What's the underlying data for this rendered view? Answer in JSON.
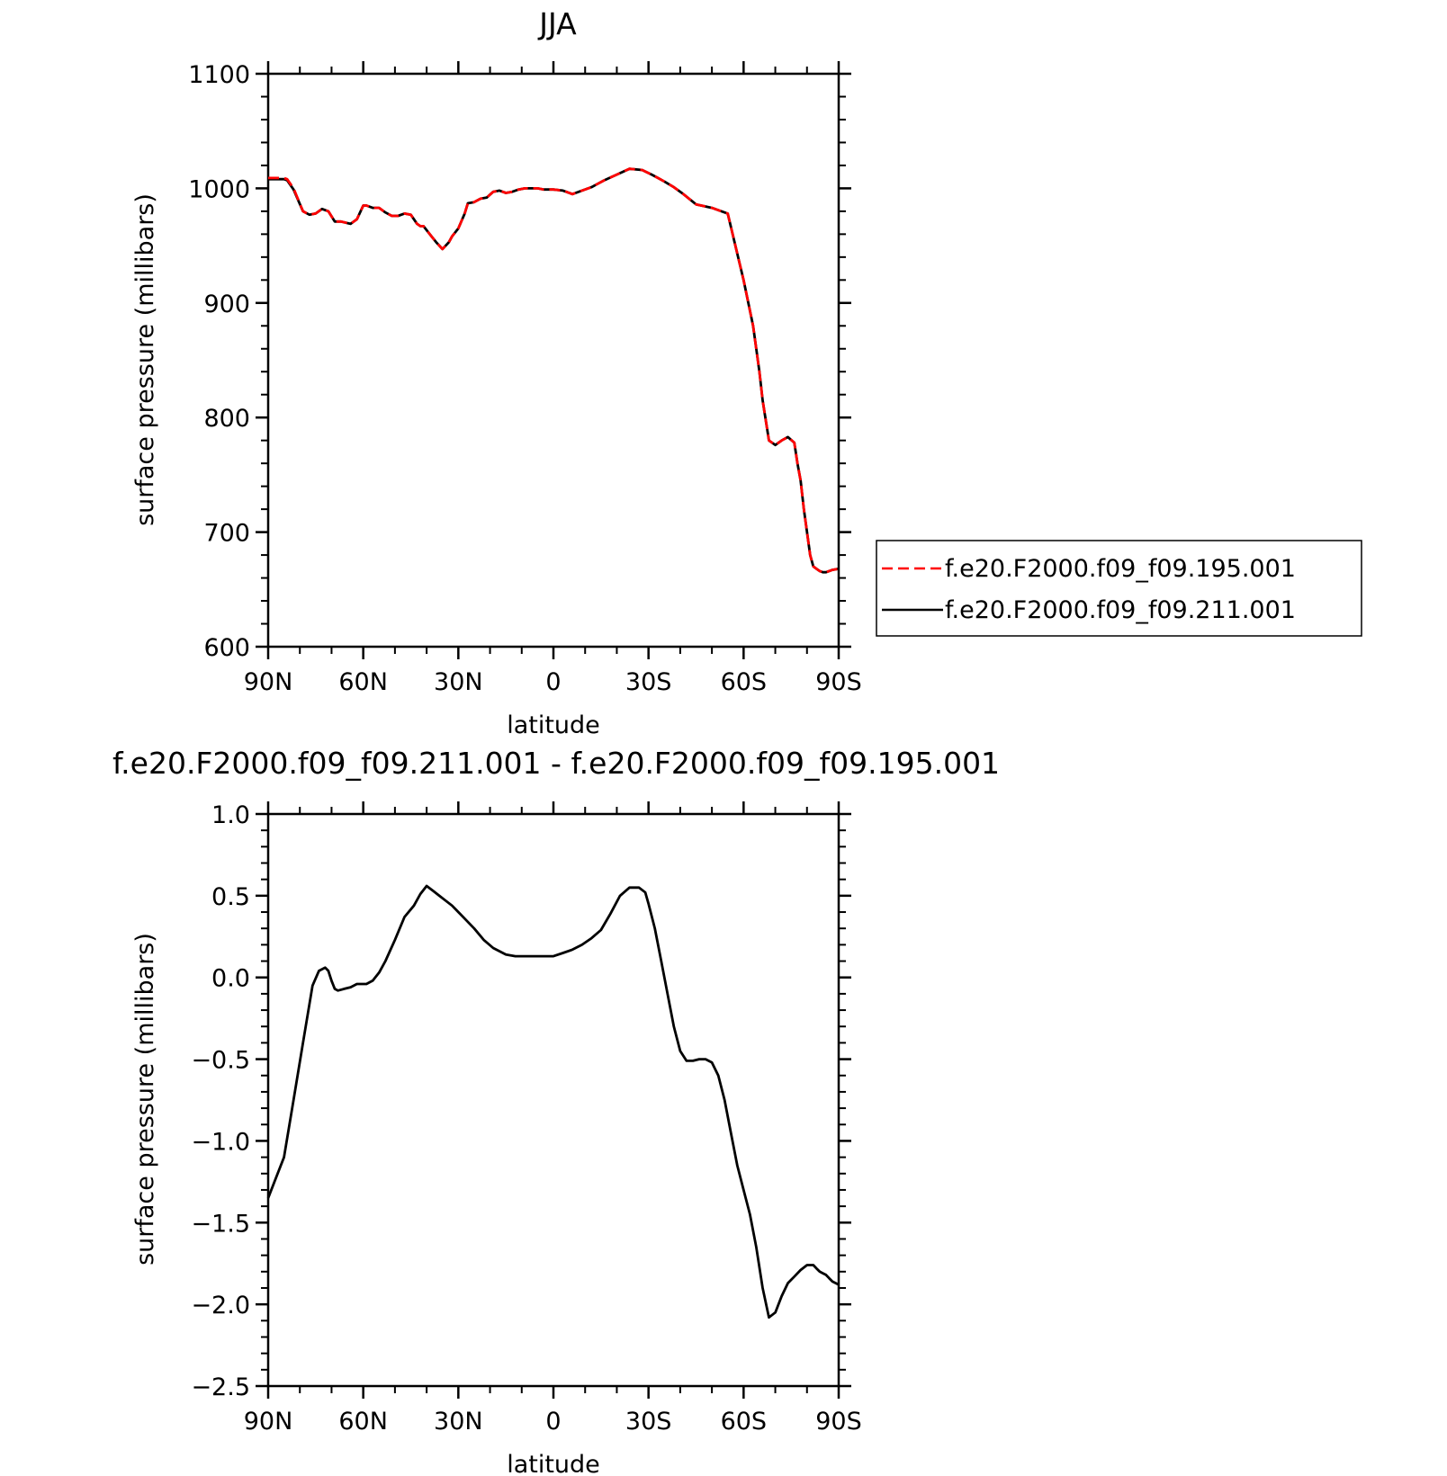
{
  "chart_data": [
    {
      "type": "line",
      "title": "JJA",
      "xlabel": "latitude",
      "ylabel": "surface pressure (millibars)",
      "x_tick_labels": [
        "90N",
        "60N",
        "30N",
        "0",
        "30S",
        "60S",
        "90S"
      ],
      "x_ticks": [
        90,
        60,
        30,
        0,
        -30,
        -60,
        -90
      ],
      "xlim": [
        90,
        -90
      ],
      "ylim": [
        600,
        1100
      ],
      "y_ticks": [
        600,
        700,
        800,
        900,
        1000,
        1100
      ],
      "y_tick_labels": [
        "600",
        "700",
        "800",
        "900",
        "1000",
        "1100"
      ],
      "grid": false,
      "legend_placement": "right of plot",
      "series": [
        {
          "name": "f.e20.F2000.f09_f09.195.001",
          "color": "#ff0000",
          "dash": "dashed",
          "x": [
            90,
            85,
            84,
            82,
            79,
            77,
            75,
            73,
            71,
            69,
            67,
            64,
            62,
            60,
            59,
            57,
            55,
            53,
            51,
            49,
            47,
            45,
            43,
            42,
            41,
            39,
            37,
            35,
            33,
            32,
            30,
            28,
            27,
            25,
            23,
            21,
            19,
            17,
            15,
            13,
            11,
            9,
            7,
            5,
            3,
            0,
            -3,
            -6,
            -9,
            -12,
            -14,
            -16,
            -20,
            -24,
            -28,
            -31,
            -33,
            -35,
            -38,
            -41,
            -45,
            -50,
            -55,
            -60,
            -63,
            -65,
            -66,
            -68,
            -70,
            -72,
            -74,
            -76,
            -77,
            -78,
            -79,
            -80,
            -81,
            -82,
            -83,
            -84,
            -85,
            -86,
            -87,
            -88,
            -90
          ],
          "y": [
            1009,
            1009,
            1008,
            1000,
            980,
            977,
            978,
            982,
            980,
            971,
            971,
            969,
            973,
            985,
            985,
            983,
            983,
            979,
            976,
            976,
            978,
            977,
            969,
            967,
            967,
            960,
            953,
            947,
            953,
            958,
            965,
            978,
            987,
            988,
            991,
            992,
            997,
            998,
            996,
            997,
            999,
            1000,
            1000,
            1000,
            999,
            999,
            998,
            995,
            998,
            1001,
            1004,
            1007,
            1012,
            1017,
            1016,
            1012,
            1009,
            1006,
            1001,
            995,
            986,
            983,
            978,
            920,
            880,
            840,
            815,
            780,
            776,
            780,
            783,
            778,
            760,
            745,
            720,
            700,
            680,
            670,
            668,
            666,
            665,
            665,
            666,
            667,
            668
          ],
          "note_x": "latitude in degrees, positive = N"
        },
        {
          "name": "f.e20.F2000.f09_f09.211.001",
          "color": "#000000",
          "dash": "solid",
          "x": [
            90,
            85,
            84,
            82,
            79,
            77,
            75,
            73,
            71,
            69,
            67,
            64,
            62,
            60,
            59,
            57,
            55,
            53,
            51,
            49,
            47,
            45,
            43,
            42,
            41,
            39,
            37,
            35,
            33,
            32,
            30,
            28,
            27,
            25,
            23,
            21,
            19,
            17,
            15,
            13,
            11,
            9,
            7,
            5,
            3,
            0,
            -3,
            -6,
            -9,
            -12,
            -14,
            -16,
            -20,
            -24,
            -28,
            -31,
            -33,
            -35,
            -38,
            -41,
            -45,
            -50,
            -55,
            -60,
            -63,
            -65,
            -66,
            -68,
            -70,
            -72,
            -74,
            -76,
            -77,
            -78,
            -79,
            -80,
            -81,
            -82,
            -83,
            -84,
            -85,
            -86,
            -87,
            -88,
            -90
          ],
          "y": [
            1008,
            1008,
            1007,
            999,
            980,
            977,
            978,
            982,
            980,
            971,
            971,
            969,
            973,
            985,
            985,
            983,
            983,
            979,
            976,
            976,
            978,
            977,
            969,
            967,
            967,
            960,
            953,
            947,
            953,
            958,
            965,
            978,
            987,
            988,
            991,
            992,
            997,
            998,
            996,
            997,
            999,
            1000,
            1000,
            1000,
            999,
            999,
            998,
            995,
            998,
            1001,
            1004,
            1007,
            1012,
            1017,
            1016,
            1012,
            1009,
            1006,
            1001,
            995,
            986,
            983,
            978,
            920,
            880,
            840,
            815,
            780,
            776,
            780,
            783,
            778,
            760,
            745,
            720,
            700,
            680,
            670,
            668,
            666,
            665,
            665,
            666,
            667,
            668
          ]
        }
      ]
    },
    {
      "type": "line",
      "title": "f.e20.F2000.f09_f09.211.001 - f.e20.F2000.f09_f09.195.001",
      "xlabel": "latitude",
      "ylabel": "surface pressure (millibars)",
      "x_tick_labels": [
        "90N",
        "60N",
        "30N",
        "0",
        "30S",
        "60S",
        "90S"
      ],
      "x_ticks": [
        90,
        60,
        30,
        0,
        -30,
        -60,
        -90
      ],
      "xlim": [
        90,
        -90
      ],
      "ylim": [
        -2.5,
        1.0
      ],
      "y_ticks": [
        -2.5,
        -2.0,
        -1.5,
        -1.0,
        -0.5,
        0.0,
        0.5,
        1.0
      ],
      "y_tick_labels": [
        "−2.5",
        "−2.0",
        "−1.5",
        "−1.0",
        "−0.5",
        "0.0",
        "0.5",
        "1.0"
      ],
      "grid": false,
      "series": [
        {
          "color": "#000000",
          "dash": "solid",
          "x": [
            90,
            88,
            85,
            82,
            79,
            76,
            74,
            72,
            71,
            70,
            69,
            68,
            66,
            64,
            62,
            59,
            57,
            55,
            53,
            50,
            47,
            44,
            42,
            40,
            38,
            36,
            34,
            32,
            30,
            28,
            25,
            22,
            19,
            15,
            12,
            8,
            5,
            3,
            0,
            -3,
            -6,
            -9,
            -12,
            -15,
            -18,
            -21,
            -24,
            -27,
            -29,
            -30,
            -32,
            -34,
            -36,
            -38,
            -40,
            -42,
            -44,
            -46,
            -48,
            -50,
            -52,
            -54,
            -56,
            -58,
            -60,
            -62,
            -64,
            -66,
            -68,
            -70,
            -72,
            -74,
            -76,
            -78,
            -80,
            -82,
            -83,
            -84,
            -85,
            -86,
            -87,
            -88,
            -89,
            -90
          ],
          "y": [
            -1.35,
            -1.25,
            -1.1,
            -0.75,
            -0.4,
            -0.05,
            0.04,
            0.06,
            0.04,
            -0.02,
            -0.07,
            -0.08,
            -0.07,
            -0.06,
            -0.04,
            -0.04,
            -0.02,
            0.03,
            0.1,
            0.23,
            0.37,
            0.44,
            0.51,
            0.56,
            0.53,
            0.5,
            0.47,
            0.44,
            0.4,
            0.36,
            0.3,
            0.23,
            0.18,
            0.14,
            0.13,
            0.13,
            0.13,
            0.13,
            0.13,
            0.15,
            0.17,
            0.2,
            0.24,
            0.29,
            0.39,
            0.5,
            0.55,
            0.55,
            0.52,
            0.45,
            0.3,
            0.1,
            -0.1,
            -0.3,
            -0.45,
            -0.51,
            -0.51,
            -0.5,
            -0.5,
            -0.52,
            -0.6,
            -0.75,
            -0.95,
            -1.15,
            -1.3,
            -1.45,
            -1.65,
            -1.9,
            -2.08,
            -2.05,
            -1.95,
            -1.87,
            -1.83,
            -1.79,
            -1.76,
            -1.76,
            -1.78,
            -1.8,
            -1.81,
            -1.82,
            -1.84,
            -1.86,
            -1.87,
            -1.88
          ]
        }
      ]
    }
  ]
}
